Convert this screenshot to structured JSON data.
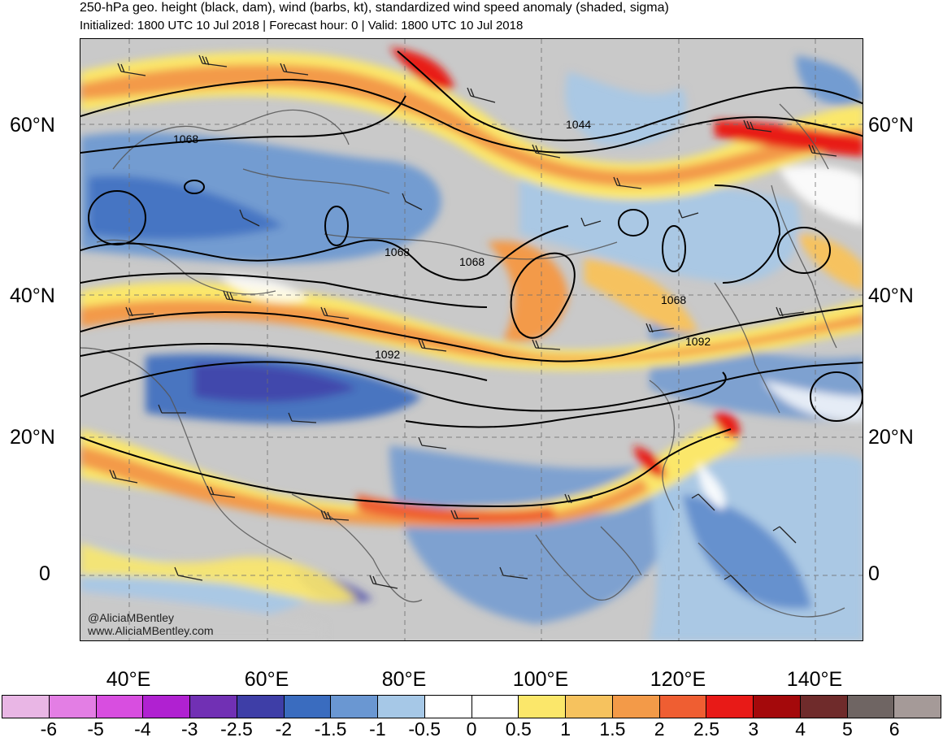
{
  "title": "250-hPa geo. height (black, dam), wind (barbs, kt), standardized wind speed anomaly (shaded, sigma)",
  "subtitle": "Initialized: 1800 UTC 10 Jul 2018 | Forecast hour: 0 | Valid: 1800 UTC 10 Jul 2018",
  "lat_labels": [
    "60°N",
    "40°N",
    "20°N",
    "0"
  ],
  "lon_labels": [
    "40°E",
    "60°E",
    "80°E",
    "100°E",
    "120°E",
    "140°E"
  ],
  "contour_labels": [
    "1068",
    "1044",
    "1068",
    "1068",
    "1068",
    "1092",
    "1092"
  ],
  "credit": {
    "handle": "@AliciaMBentley",
    "website": "www.AliciaMBentley.com"
  },
  "colorbar": {
    "colors": [
      "#e9b6e5",
      "#e37ee4",
      "#d84ee0",
      "#b021d1",
      "#7130b4",
      "#3e3ea7",
      "#3a6cbf",
      "#6a97d2",
      "#a6c8e7",
      "#ffffff",
      "#ffffff",
      "#fbe76a",
      "#f6c25e",
      "#f39a48",
      "#ef5e32",
      "#e81a17",
      "#a4090b",
      "#6f2b2b",
      "#6f6563",
      "#a59a98"
    ],
    "labels": [
      "-6",
      "-5",
      "-4",
      "-3",
      "-2.5",
      "-2",
      "-1.5",
      "-1",
      "-0.5",
      "0",
      "0.5",
      "1",
      "1.5",
      "2",
      "2.5",
      "3",
      "4",
      "5",
      "6"
    ]
  },
  "map_colors": {
    "background": "#c9c9c9",
    "contour": "#000000",
    "coastline": "#555555"
  }
}
